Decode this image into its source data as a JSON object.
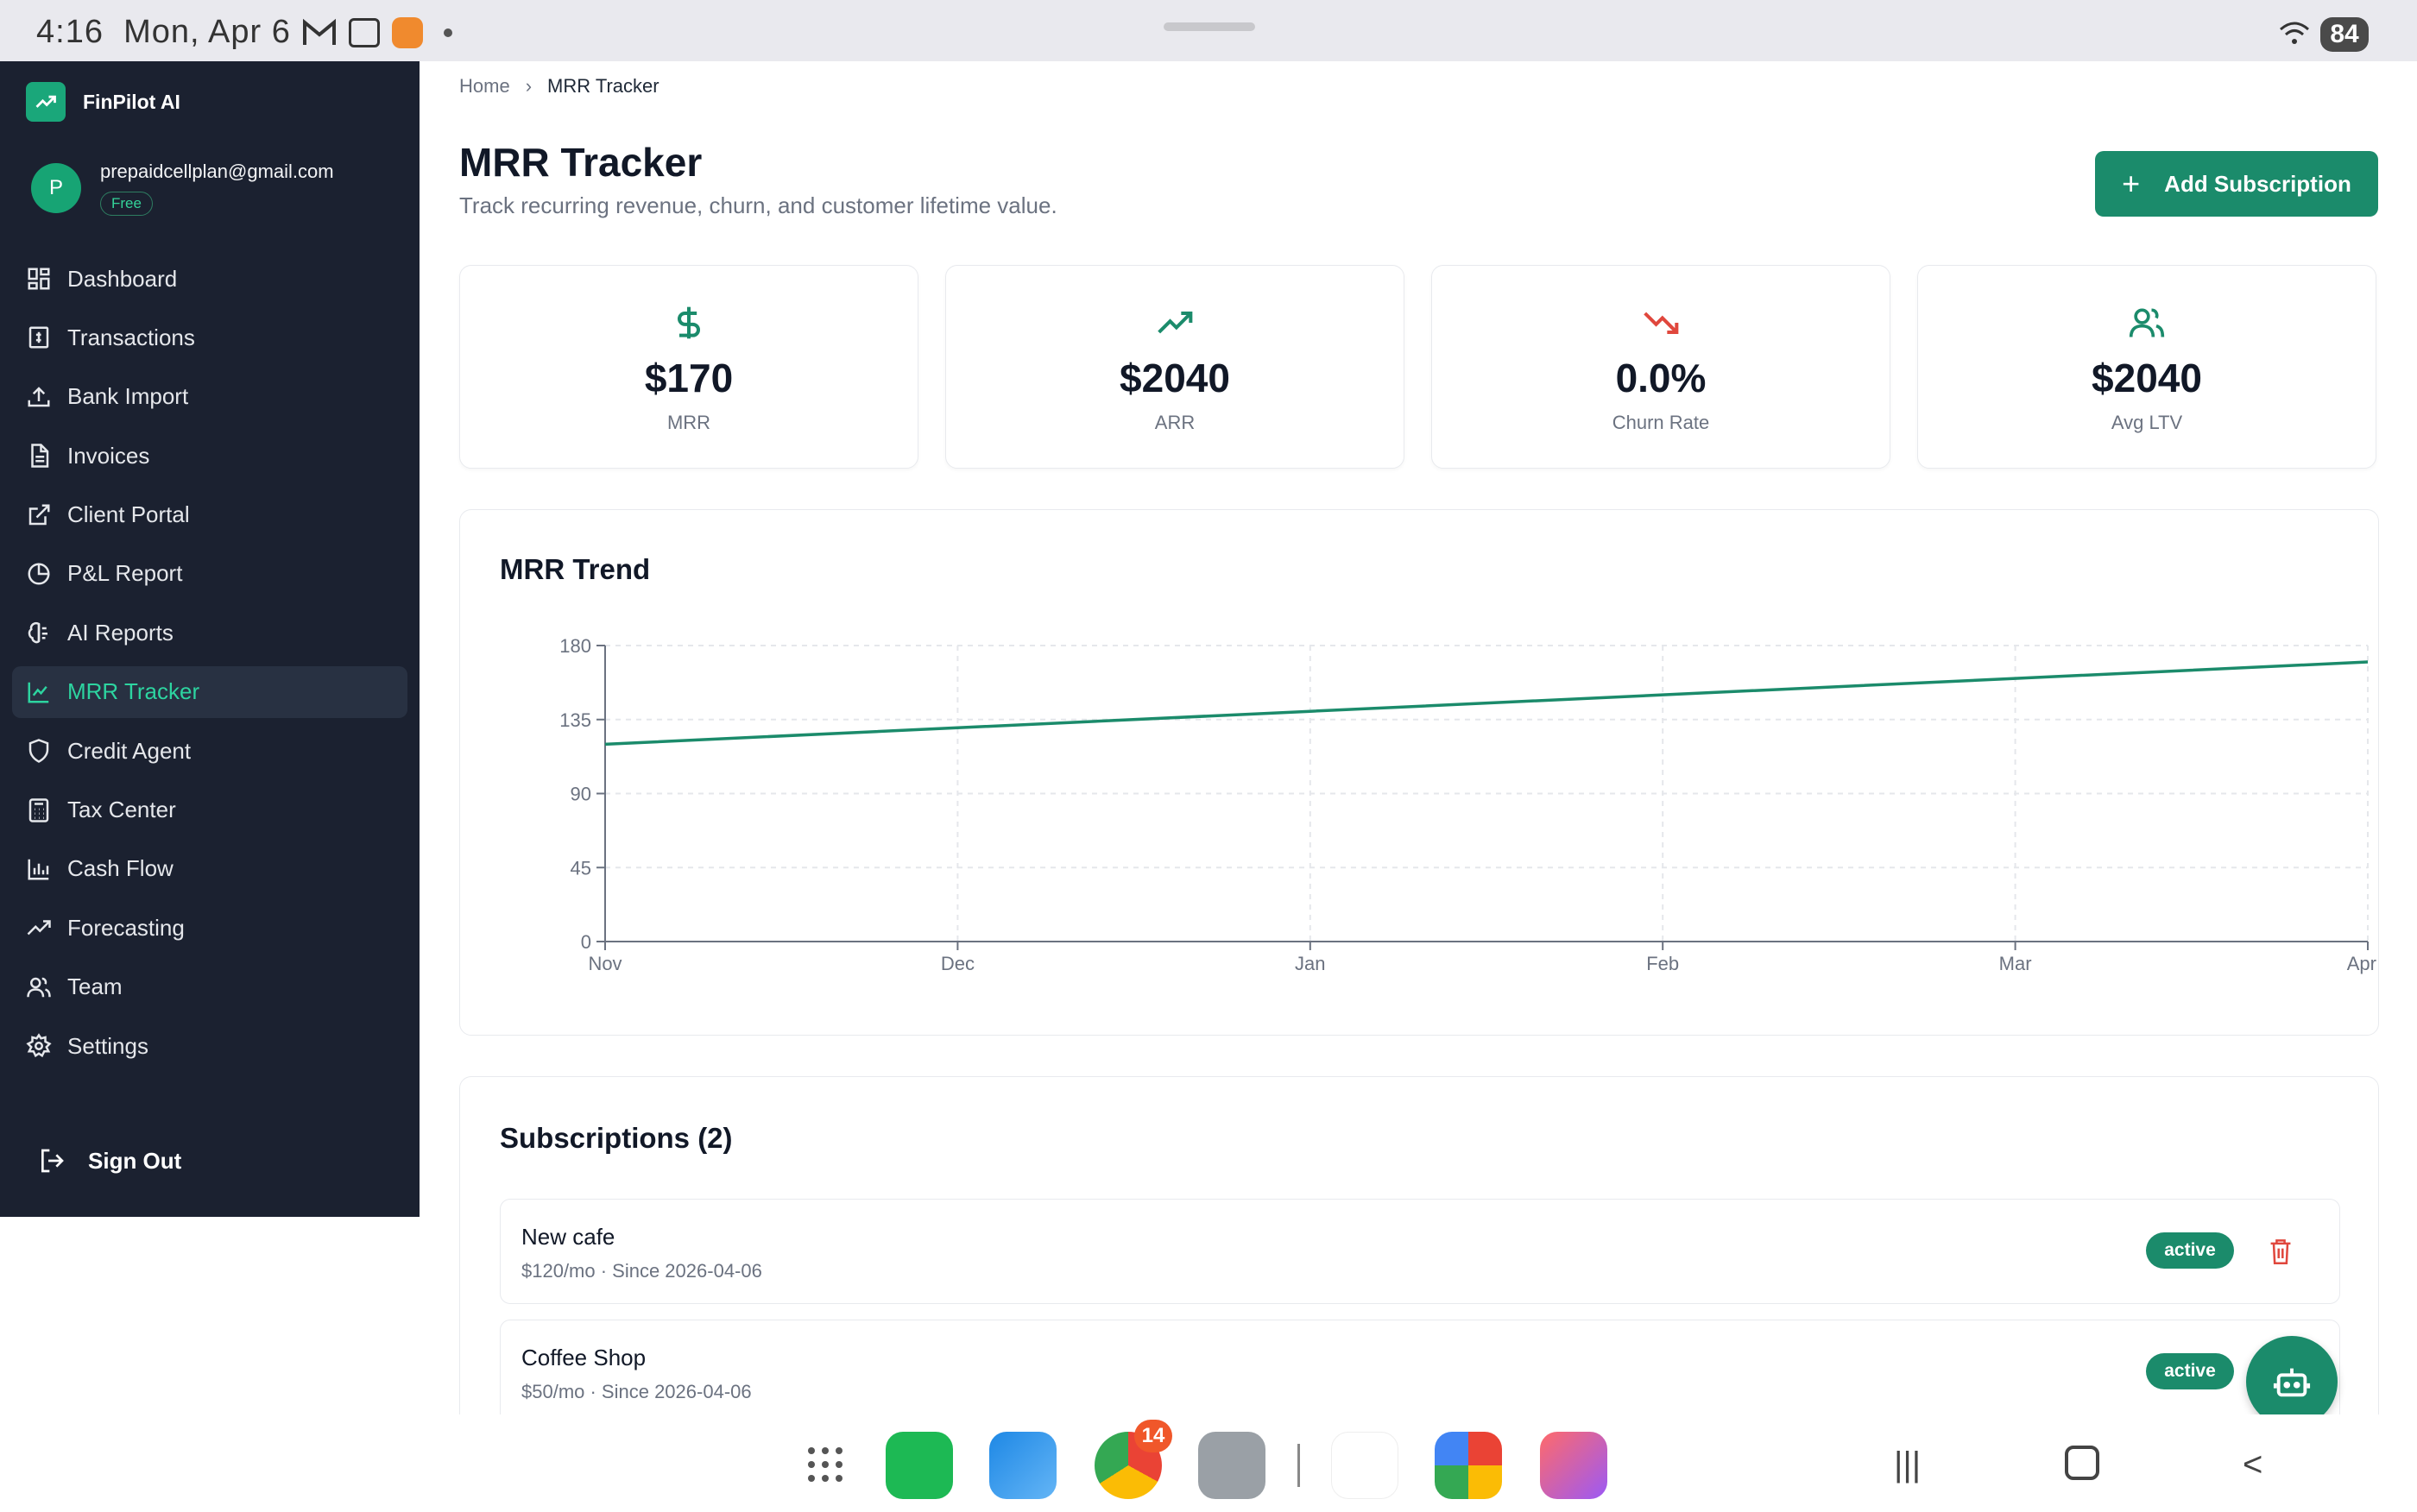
{
  "statusbar": {
    "time": "4:16",
    "date": "Mon, Apr 6",
    "battery": "84"
  },
  "sidebar": {
    "brand": "FinPilot AI",
    "user": {
      "initial": "P",
      "email": "prepaidcellplan@gmail.com",
      "plan": "Free"
    },
    "items": [
      {
        "label": "Dashboard",
        "icon": "grid-icon"
      },
      {
        "label": "Transactions",
        "icon": "receipt-icon"
      },
      {
        "label": "Bank Import",
        "icon": "upload-icon"
      },
      {
        "label": "Invoices",
        "icon": "file-icon"
      },
      {
        "label": "Client Portal",
        "icon": "external-link-icon"
      },
      {
        "label": "P&L Report",
        "icon": "pie-chart-icon"
      },
      {
        "label": "AI Reports",
        "icon": "brain-icon"
      },
      {
        "label": "MRR Tracker",
        "icon": "line-chart-icon",
        "active": true
      },
      {
        "label": "Credit Agent",
        "icon": "shield-icon"
      },
      {
        "label": "Tax Center",
        "icon": "calculator-icon"
      },
      {
        "label": "Cash Flow",
        "icon": "bar-chart-icon"
      },
      {
        "label": "Forecasting",
        "icon": "trending-up-icon"
      },
      {
        "label": "Team",
        "icon": "users-icon"
      },
      {
        "label": "Settings",
        "icon": "gear-icon"
      }
    ],
    "sign_out": "Sign Out"
  },
  "breadcrumb": {
    "home": "Home",
    "current": "MRR Tracker"
  },
  "header": {
    "title": "MRR Tracker",
    "subtitle": "Track recurring revenue, churn, and customer lifetime value.",
    "add_button": "Add Subscription"
  },
  "stats": [
    {
      "value": "$170",
      "label": "MRR",
      "icon": "dollar-icon",
      "color": "#1b8b6b"
    },
    {
      "value": "$2040",
      "label": "ARR",
      "icon": "trending-up-icon",
      "color": "#1b8b6b"
    },
    {
      "value": "0.0%",
      "label": "Churn Rate",
      "icon": "trending-down-icon",
      "color": "#e0473d"
    },
    {
      "value": "$2040",
      "label": "Avg LTV",
      "icon": "users-icon",
      "color": "#1b8b6b"
    }
  ],
  "chart_title": "MRR Trend",
  "chart_data": {
    "type": "line",
    "title": "MRR Trend",
    "categories": [
      "Nov",
      "Dec",
      "Jan",
      "Feb",
      "Mar",
      "Apr"
    ],
    "series": [
      {
        "values": [
          120,
          130,
          140,
          150,
          160,
          170
        ],
        "color": "#1b8b6b"
      }
    ],
    "ylim": [
      0,
      180
    ],
    "yticks": [
      0,
      45,
      90,
      135,
      180
    ],
    "grid": true,
    "xlabel": "",
    "ylabel": ""
  },
  "subscriptions": {
    "title": "Subscriptions (2)",
    "items": [
      {
        "name": "New cafe",
        "meta": "$120/mo · Since 2026-04-06",
        "status": "active"
      },
      {
        "name": "Coffee Shop",
        "meta": "$50/mo · Since 2026-04-06",
        "status": "active"
      }
    ]
  },
  "taskbar": {
    "chrome_badge": "14"
  }
}
